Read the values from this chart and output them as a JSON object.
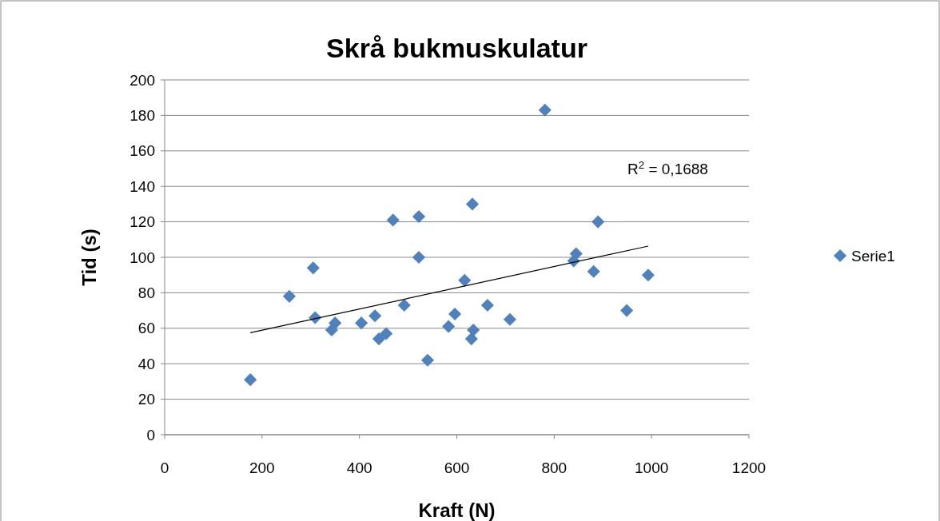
{
  "chart_data": {
    "type": "scatter",
    "title": "Skrå bukmuskulatur",
    "xlabel": "Kraft (N)",
    "ylabel": "Tid (s)",
    "xlim": [
      0,
      1200
    ],
    "xticks": [
      0,
      200,
      400,
      600,
      800,
      1000,
      1200
    ],
    "ylim": [
      0,
      200
    ],
    "yticks": [
      0,
      20,
      40,
      60,
      80,
      100,
      120,
      140,
      160,
      180,
      200
    ],
    "grid": "y",
    "legend": "right",
    "series": [
      {
        "name": "Serie1",
        "color": "#4f81bd",
        "marker": "diamond",
        "x": [
          176,
          256,
          305,
          309,
          350,
          343,
          404,
          432,
          440,
          455,
          469,
          492,
          522,
          522,
          540,
          583,
          596,
          616,
          632,
          630,
          634,
          663,
          709,
          781,
          840,
          845,
          881,
          890,
          949,
          993
        ],
        "values": [
          31,
          78,
          94,
          66,
          63,
          59,
          63,
          67,
          54,
          57,
          121,
          73,
          123,
          100,
          42,
          61,
          68,
          87,
          130,
          54,
          59,
          73,
          65,
          183,
          98,
          102,
          92,
          120,
          70,
          90
        ]
      },
      {
        "type": "line",
        "color": "#000000",
        "marker": "none",
        "x": [
          176,
          993
        ],
        "values": [
          57.5,
          106.3
        ]
      }
    ],
    "annotations": [
      "R$^{2}$ = 0,1688"
    ]
  }
}
